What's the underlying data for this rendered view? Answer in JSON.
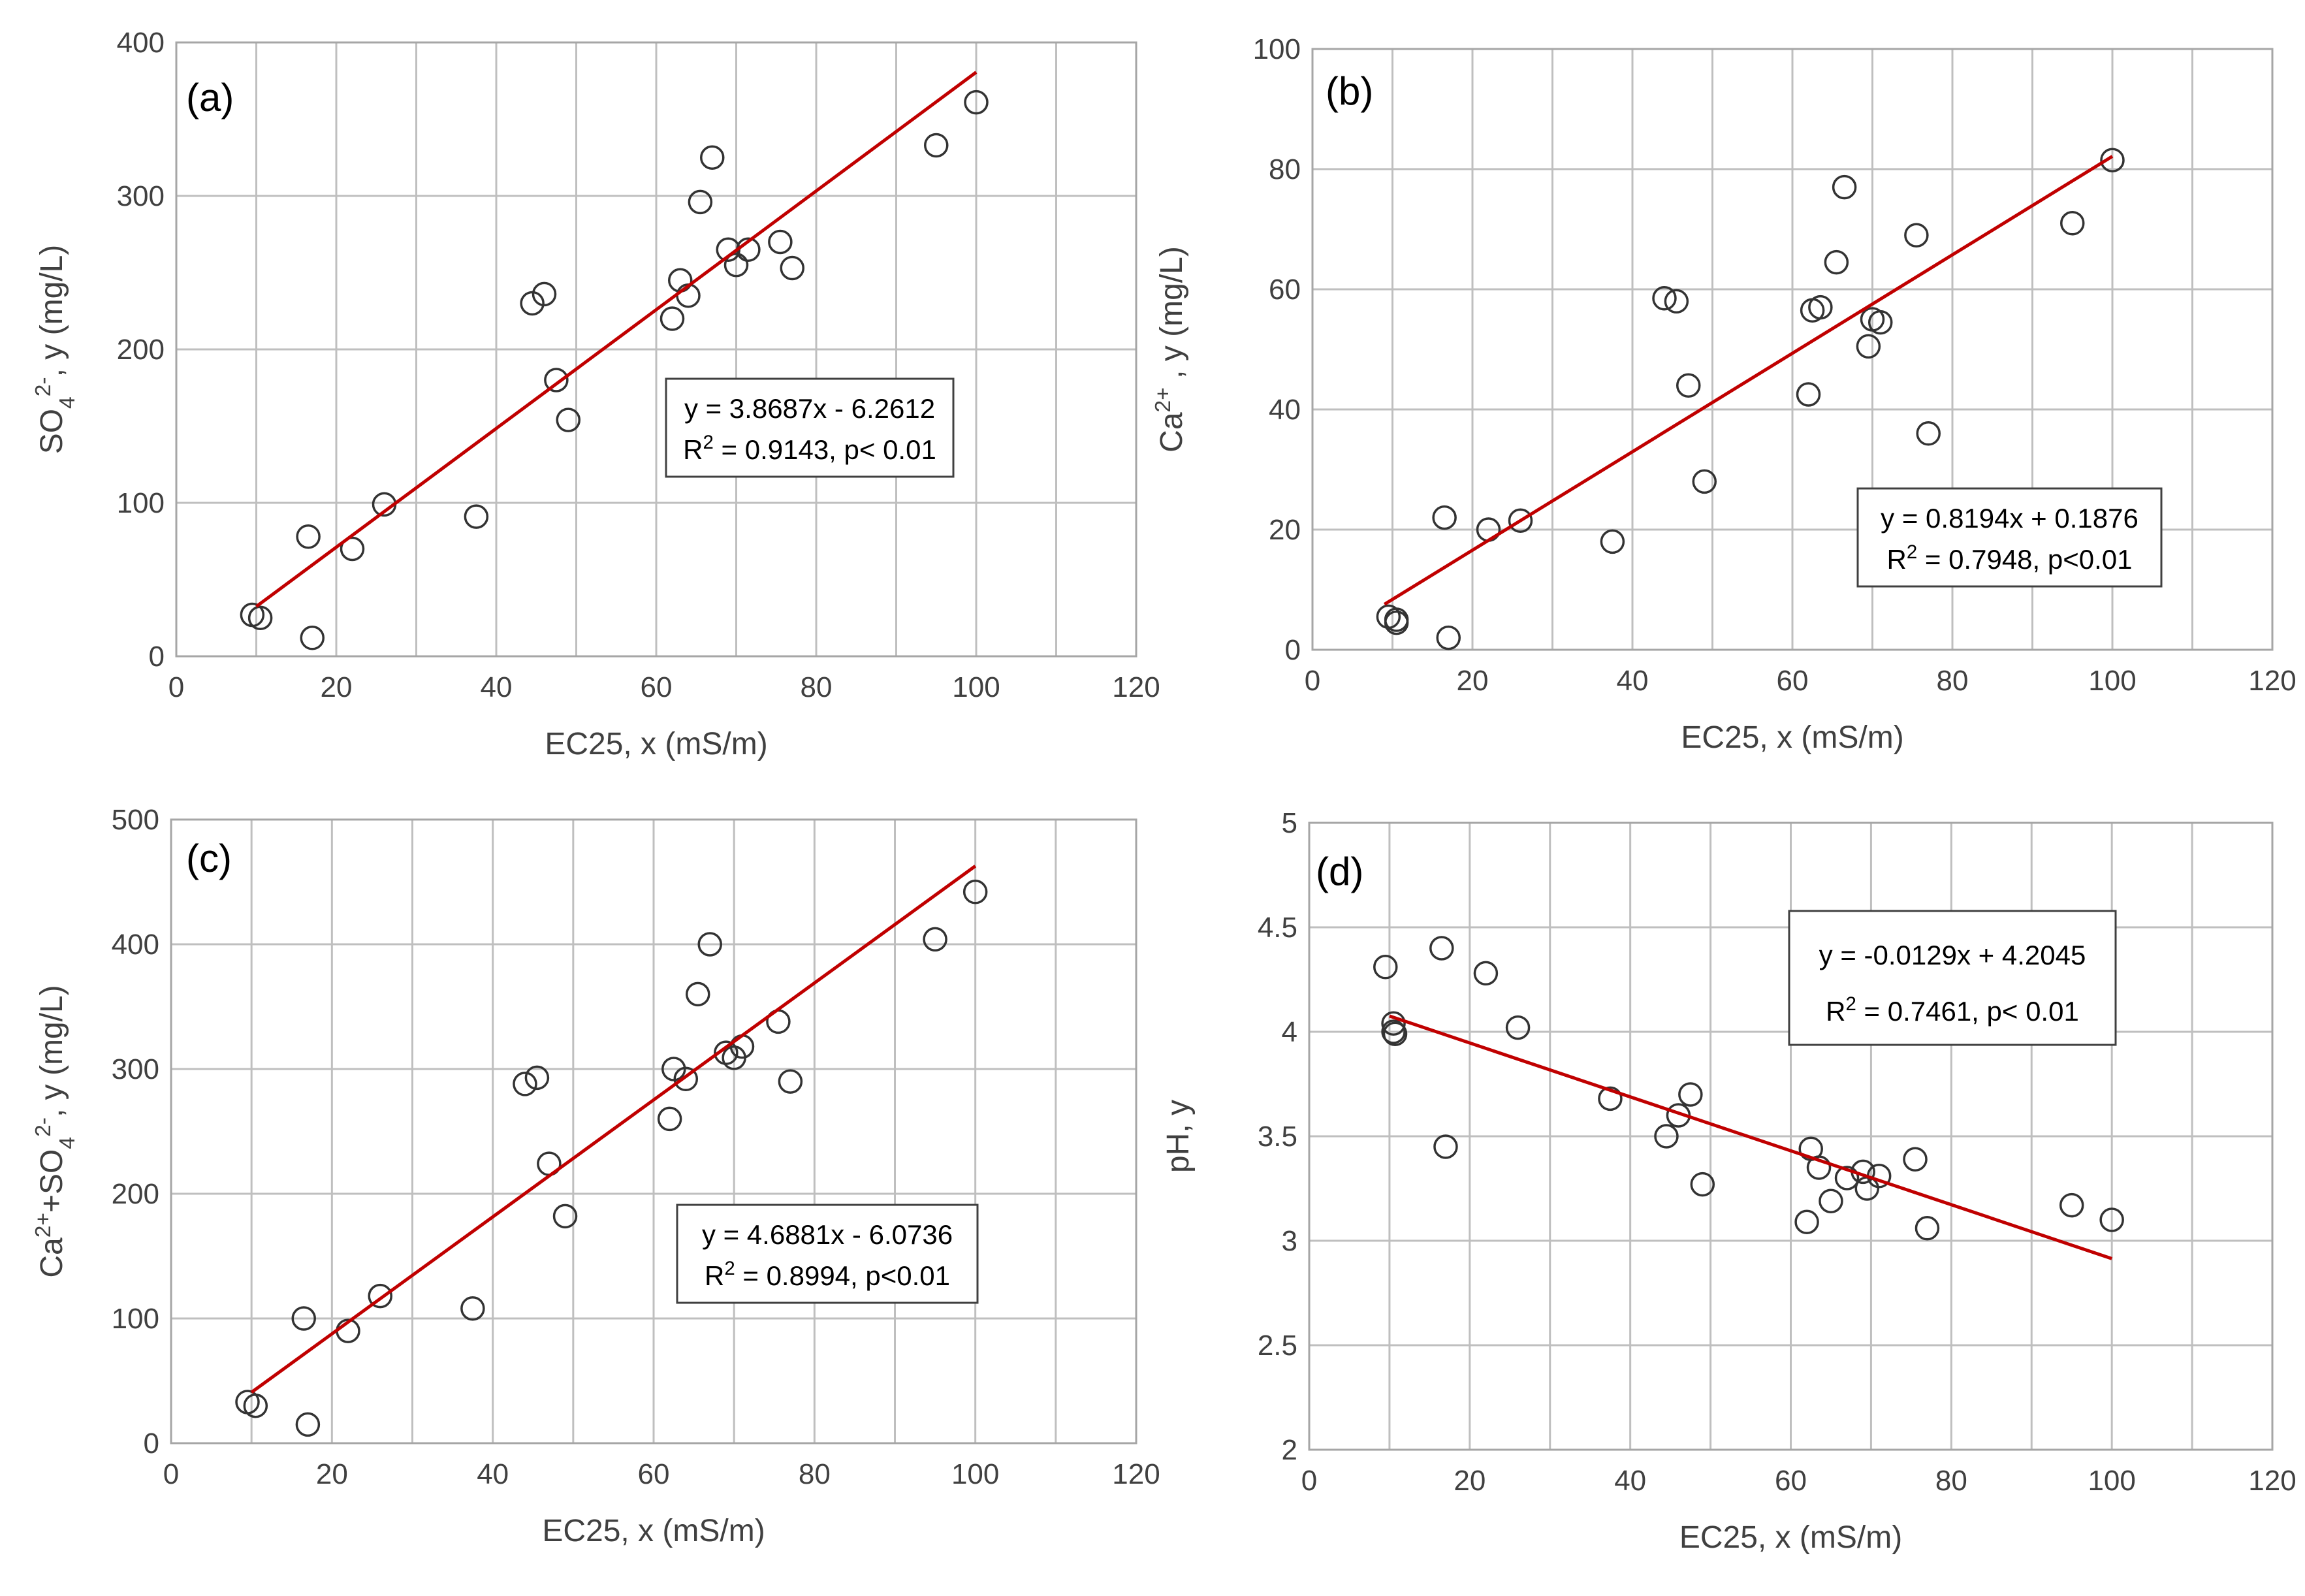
{
  "chart_data": [
    {
      "id": "a",
      "type": "scatter",
      "panel_label": "(a)",
      "xlabel": "EC25, x (mS/m)",
      "ylabel": "SO42-, y (mg/L)",
      "xlim": [
        0,
        120
      ],
      "ylim": [
        0,
        400
      ],
      "xticks": [
        "0",
        "20",
        "40",
        "60",
        "80",
        "100",
        "120"
      ],
      "yticks": [
        "0",
        "100",
        "200",
        "300",
        "400"
      ],
      "grid": true,
      "points": [
        [
          9.5,
          27
        ],
        [
          10.5,
          25
        ],
        [
          16.5,
          78
        ],
        [
          17,
          12
        ],
        [
          22,
          70
        ],
        [
          26,
          99
        ],
        [
          37.5,
          91
        ],
        [
          44.5,
          230
        ],
        [
          46,
          236
        ],
        [
          47.5,
          180
        ],
        [
          49,
          154
        ],
        [
          62,
          220
        ],
        [
          63,
          245
        ],
        [
          64,
          235
        ],
        [
          65.5,
          296
        ],
        [
          67,
          325
        ],
        [
          69,
          265
        ],
        [
          70,
          255
        ],
        [
          71.5,
          265
        ],
        [
          75.5,
          270
        ],
        [
          77,
          253
        ],
        [
          95,
          333
        ],
        [
          100,
          361
        ]
      ],
      "fit": {
        "slope": 3.8687,
        "intercept": -6.2612,
        "x_range": [
          10,
          100
        ]
      },
      "equation": "y = 3.8687x - 6.2612",
      "r2_text": "R2 = 0.9143, p< 0.01"
    },
    {
      "id": "b",
      "type": "scatter",
      "panel_label": "(b)",
      "xlabel": "EC25, x (mS/m)",
      "ylabel": "Ca2+ , y (mg/L)",
      "xlim": [
        0,
        120
      ],
      "ylim": [
        0,
        100
      ],
      "xticks": [
        "0",
        "20",
        "40",
        "60",
        "80",
        "100",
        "120"
      ],
      "yticks": [
        "0",
        "20",
        "40",
        "60",
        "80",
        "100"
      ],
      "grid": true,
      "points": [
        [
          9.5,
          5.5
        ],
        [
          10.5,
          5
        ],
        [
          10.5,
          4.5
        ],
        [
          16.5,
          22
        ],
        [
          17,
          2
        ],
        [
          22,
          20
        ],
        [
          26,
          21.5
        ],
        [
          37.5,
          18
        ],
        [
          44,
          58.5
        ],
        [
          45.5,
          58
        ],
        [
          47,
          44
        ],
        [
          49,
          28
        ],
        [
          62,
          42.5
        ],
        [
          62.5,
          56.5
        ],
        [
          63.5,
          57
        ],
        [
          65.5,
          64.5
        ],
        [
          66.5,
          77
        ],
        [
          69.5,
          50.5
        ],
        [
          70,
          55
        ],
        [
          71,
          54.5
        ],
        [
          75.5,
          69
        ],
        [
          77,
          36
        ],
        [
          95,
          71
        ],
        [
          100,
          81.5
        ]
      ],
      "fit": {
        "slope": 0.8194,
        "intercept": 0.1876,
        "x_range": [
          9,
          100
        ]
      },
      "equation": "y = 0.8194x + 0.1876",
      "r2_text": "R2 = 0.7948, p<0.01"
    },
    {
      "id": "c",
      "type": "scatter",
      "panel_label": "(c)",
      "xlabel": "EC25, x (mS/m)",
      "ylabel": "Ca2++SO42-, y (mg/L)",
      "xlim": [
        0,
        120
      ],
      "ylim": [
        0,
        500
      ],
      "xticks": [
        "0",
        "20",
        "40",
        "60",
        "80",
        "100",
        "120"
      ],
      "yticks": [
        "0",
        "100",
        "200",
        "300",
        "400",
        "500"
      ],
      "grid": true,
      "points": [
        [
          9.5,
          33
        ],
        [
          10.5,
          30
        ],
        [
          16.5,
          100
        ],
        [
          17,
          15
        ],
        [
          22,
          90
        ],
        [
          26,
          118
        ],
        [
          37.5,
          108
        ],
        [
          44,
          288
        ],
        [
          45.5,
          293
        ],
        [
          47,
          224
        ],
        [
          49,
          182
        ],
        [
          62,
          260
        ],
        [
          62.5,
          300
        ],
        [
          64,
          292
        ],
        [
          65.5,
          360
        ],
        [
          67,
          400
        ],
        [
          69,
          313
        ],
        [
          70,
          309
        ],
        [
          71,
          318
        ],
        [
          75.5,
          338
        ],
        [
          77,
          290
        ],
        [
          95,
          404
        ],
        [
          100,
          442
        ]
      ],
      "fit": {
        "slope": 4.6881,
        "intercept": -6.0736,
        "x_range": [
          10,
          100
        ]
      },
      "equation": "y = 4.6881x - 6.0736",
      "r2_text": "R2 = 0.8994, p<0.01"
    },
    {
      "id": "d",
      "type": "scatter",
      "panel_label": "(d)",
      "xlabel": "EC25, x (mS/m)",
      "ylabel": "pH, y",
      "xlim": [
        0,
        120
      ],
      "ylim": [
        2,
        5
      ],
      "xticks": [
        "0",
        "20",
        "40",
        "60",
        "80",
        "100",
        "120"
      ],
      "yticks": [
        "2",
        "2.5",
        "3",
        "3.5",
        "4",
        "4.5",
        "5"
      ],
      "grid": true,
      "points": [
        [
          9.5,
          4.31
        ],
        [
          10.5,
          4.04
        ],
        [
          10.5,
          4.0
        ],
        [
          10.7,
          3.99
        ],
        [
          16.5,
          4.4
        ],
        [
          17,
          3.45
        ],
        [
          22,
          4.28
        ],
        [
          26,
          4.02
        ],
        [
          37.5,
          3.68
        ],
        [
          44.5,
          3.5
        ],
        [
          46,
          3.6
        ],
        [
          47.5,
          3.7
        ],
        [
          49,
          3.27
        ],
        [
          62,
          3.09
        ],
        [
          62.5,
          3.44
        ],
        [
          63.5,
          3.35
        ],
        [
          65,
          3.19
        ],
        [
          67,
          3.3
        ],
        [
          69,
          3.33
        ],
        [
          69.5,
          3.25
        ],
        [
          71,
          3.31
        ],
        [
          75.5,
          3.39
        ],
        [
          77,
          3.06
        ],
        [
          95,
          3.17
        ],
        [
          100,
          3.1
        ]
      ],
      "fit": {
        "slope": -0.0129,
        "intercept": 4.2045,
        "x_range": [
          10,
          100
        ]
      },
      "equation": "y = -0.0129x + 4.2045",
      "r2_text": "R2 = 0.7461, p< 0.01"
    }
  ]
}
